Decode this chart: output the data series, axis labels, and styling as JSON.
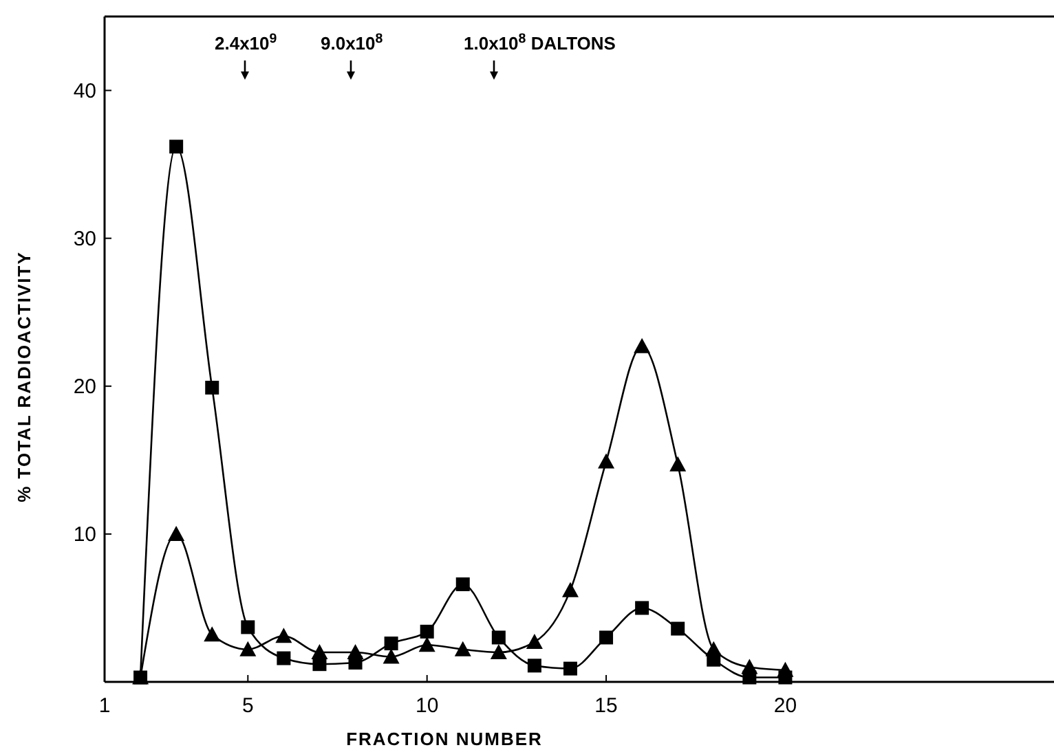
{
  "chart_data": {
    "type": "line",
    "xlabel": "FRACTION NUMBER",
    "ylabel": "% TOTAL RADIOACTIVITY",
    "x": [
      2,
      3,
      4,
      5,
      6,
      7,
      8,
      9,
      10,
      11,
      12,
      13,
      14,
      15,
      16,
      17,
      18,
      19,
      20
    ],
    "series": [
      {
        "color": "#000000",
        "marker": "square",
        "values": [
          0.3,
          36.2,
          19.9,
          3.7,
          1.6,
          1.2,
          1.3,
          2.6,
          3.4,
          6.6,
          3.0,
          1.1,
          0.9,
          3.0,
          5.0,
          3.6,
          1.5,
          0.3,
          0.3
        ]
      },
      {
        "color": "#000000",
        "marker": "triangle",
        "values": [
          0.3,
          10.0,
          3.2,
          2.2,
          3.1,
          2.0,
          2.0,
          1.7,
          2.5,
          2.2,
          2.0,
          2.7,
          6.2,
          14.9,
          22.7,
          14.7,
          2.2,
          1.0,
          0.8
        ]
      }
    ],
    "xlim": [
      1,
      27.5
    ],
    "ylim": [
      0,
      45
    ],
    "xticks": [
      1,
      5,
      10,
      15,
      20
    ],
    "yticks": [
      10,
      20,
      30,
      40
    ],
    "line_style": "solid",
    "grid": false,
    "annotations": [
      "2.4x10$^{9}$",
      "9.0x10$^{8}$",
      "1.0x10$^{8}$ DALTONS"
    ]
  }
}
